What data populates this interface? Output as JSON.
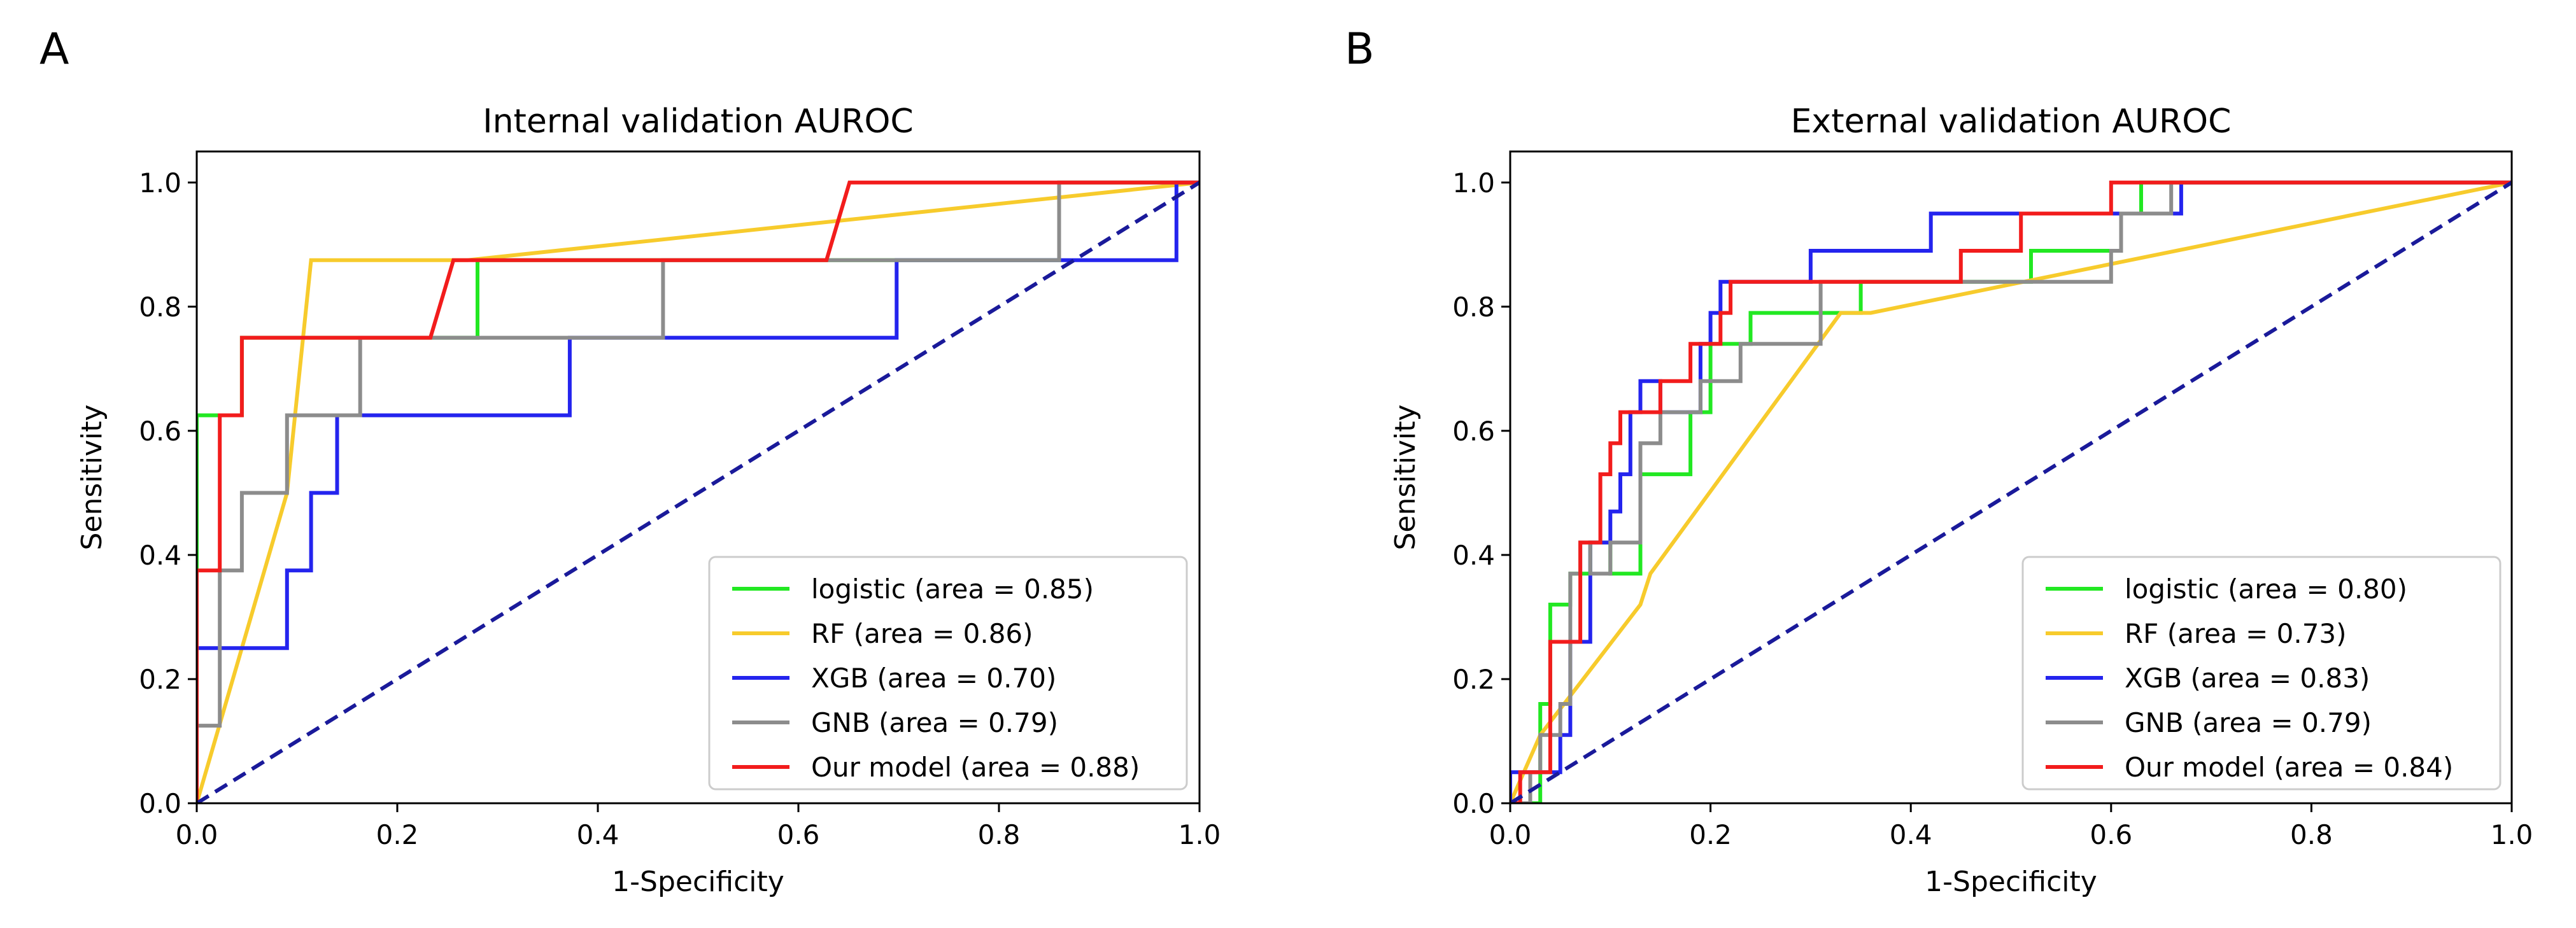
{
  "figure": {
    "panels": [
      "A",
      "B"
    ]
  },
  "colors": {
    "logistic": "#22e822",
    "RF": "#f7cb2c",
    "XGB": "#2424ee",
    "GNB": "#8c8c8c",
    "Our model": "#f21c1c",
    "chance": "#1a1a9a",
    "axes": "#000000"
  },
  "chart_data": [
    {
      "panel": "A",
      "type": "line",
      "title": "Internal validation AUROC",
      "xlabel": "1-Specificity",
      "ylabel": "Sensitivity",
      "xlim": [
        0,
        1
      ],
      "ylim": [
        0,
        1.05
      ],
      "xticks": [
        0.0,
        0.2,
        0.4,
        0.6,
        0.8,
        1.0
      ],
      "yticks": [
        0.0,
        0.2,
        0.4,
        0.6,
        0.8,
        1.0
      ],
      "tick_labels": [
        "0.0",
        "0.2",
        "0.4",
        "0.6",
        "0.8",
        "1.0"
      ],
      "legend_position": "lower right",
      "chance_line": {
        "x": [
          0,
          1
        ],
        "y": [
          0,
          1
        ]
      },
      "series": [
        {
          "name": "logistic",
          "legend": "logistic (area = 0.85)",
          "x": [
            0,
            0,
            0.045,
            0.045,
            0.28,
            0.28,
            0.86,
            0.86,
            1.0
          ],
          "y": [
            0,
            0.625,
            0.625,
            0.75,
            0.75,
            0.875,
            0.875,
            1.0,
            1.0
          ]
        },
        {
          "name": "RF",
          "legend": "RF (area = 0.86)",
          "x": [
            0,
            0.09,
            0.114,
            0.27,
            1.0
          ],
          "y": [
            0,
            0.5,
            0.875,
            0.875,
            1.0
          ]
        },
        {
          "name": "XGB",
          "legend": "XGB (area = 0.70)",
          "x": [
            0,
            0,
            0.09,
            0.09,
            0.114,
            0.114,
            0.14,
            0.14,
            0.372,
            0.372,
            0.698,
            0.698,
            0.977,
            0.977,
            1.0
          ],
          "y": [
            0,
            0.25,
            0.25,
            0.375,
            0.375,
            0.5,
            0.5,
            0.625,
            0.625,
            0.75,
            0.75,
            0.875,
            0.875,
            1.0,
            1.0
          ]
        },
        {
          "name": "GNB",
          "legend": "GNB (area = 0.79)",
          "x": [
            0,
            0,
            0.023,
            0.023,
            0.045,
            0.045,
            0.09,
            0.09,
            0.163,
            0.163,
            0.465,
            0.465,
            0.86,
            0.86,
            1.0
          ],
          "y": [
            0,
            0.125,
            0.125,
            0.375,
            0.375,
            0.5,
            0.5,
            0.625,
            0.625,
            0.75,
            0.75,
            0.875,
            0.875,
            1.0,
            1.0
          ]
        },
        {
          "name": "Our model",
          "legend": "Our model (area = 0.88)",
          "x": [
            0,
            0,
            0.023,
            0.023,
            0.045,
            0.045,
            0.233,
            0.256,
            0.628,
            0.651,
            1.0
          ],
          "y": [
            0,
            0.375,
            0.375,
            0.625,
            0.625,
            0.75,
            0.75,
            0.875,
            0.875,
            1.0,
            1.0
          ]
        }
      ]
    },
    {
      "panel": "B",
      "type": "line",
      "title": "External validation AUROC",
      "xlabel": "1-Specificity",
      "ylabel": "Sensitivity",
      "xlim": [
        0,
        1
      ],
      "ylim": [
        0,
        1.05
      ],
      "xticks": [
        0.0,
        0.2,
        0.4,
        0.6,
        0.8,
        1.0
      ],
      "yticks": [
        0.0,
        0.2,
        0.4,
        0.6,
        0.8,
        1.0
      ],
      "tick_labels": [
        "0.0",
        "0.2",
        "0.4",
        "0.6",
        "0.8",
        "1.0"
      ],
      "legend_position": "lower right",
      "chance_line": {
        "x": [
          0,
          1
        ],
        "y": [
          0,
          1
        ]
      },
      "series": [
        {
          "name": "logistic",
          "legend": "logistic (area = 0.80)",
          "x": [
            0,
            0.03,
            0.03,
            0.04,
            0.04,
            0.06,
            0.06,
            0.08,
            0.08,
            0.1,
            0.1,
            0.13,
            0.13,
            0.18,
            0.18,
            0.2,
            0.2,
            0.24,
            0.24,
            0.35,
            0.35,
            0.52,
            0.52,
            0.61,
            0.61,
            0.63,
            0.63,
            1.0
          ],
          "y": [
            0,
            0,
            0.16,
            0.16,
            0.32,
            0.32,
            0.37,
            0.37,
            0.42,
            0.42,
            0.37,
            0.37,
            0.53,
            0.53,
            0.63,
            0.63,
            0.74,
            0.74,
            0.79,
            0.79,
            0.84,
            0.84,
            0.89,
            0.89,
            0.95,
            0.95,
            1.0,
            1.0
          ]
        },
        {
          "name": "RF",
          "legend": "RF (area = 0.73)",
          "x": [
            0,
            0.03,
            0.13,
            0.14,
            0.33,
            0.36,
            1.0
          ],
          "y": [
            0,
            0.11,
            0.32,
            0.37,
            0.79,
            0.79,
            1.0
          ]
        },
        {
          "name": "XGB",
          "legend": "XGB (area = 0.83)",
          "x": [
            0,
            0,
            0.05,
            0.05,
            0.06,
            0.06,
            0.08,
            0.08,
            0.1,
            0.1,
            0.11,
            0.11,
            0.12,
            0.12,
            0.13,
            0.13,
            0.15,
            0.15,
            0.19,
            0.19,
            0.2,
            0.2,
            0.21,
            0.21,
            0.3,
            0.3,
            0.42,
            0.42,
            0.6,
            0.6,
            0.67,
            0.67,
            1.0
          ],
          "y": [
            0,
            0.05,
            0.05,
            0.11,
            0.11,
            0.26,
            0.26,
            0.42,
            0.42,
            0.47,
            0.47,
            0.53,
            0.53,
            0.63,
            0.63,
            0.68,
            0.68,
            0.63,
            0.63,
            0.74,
            0.74,
            0.79,
            0.79,
            0.84,
            0.84,
            0.89,
            0.89,
            0.95,
            0.95,
            0.95,
            0.95,
            1.0,
            1.0
          ]
        },
        {
          "name": "GNB",
          "legend": "GNB (area = 0.79)",
          "x": [
            0,
            0.02,
            0.02,
            0.03,
            0.03,
            0.05,
            0.05,
            0.06,
            0.06,
            0.07,
            0.07,
            0.08,
            0.08,
            0.1,
            0.1,
            0.13,
            0.13,
            0.15,
            0.15,
            0.19,
            0.19,
            0.23,
            0.23,
            0.27,
            0.27,
            0.31,
            0.31,
            0.6,
            0.6,
            0.61,
            0.61,
            0.65,
            0.65,
            0.66,
            0.66,
            1.0
          ],
          "y": [
            0,
            0,
            0.05,
            0.05,
            0.11,
            0.11,
            0.16,
            0.16,
            0.37,
            0.37,
            0.42,
            0.42,
            0.37,
            0.37,
            0.42,
            0.42,
            0.58,
            0.58,
            0.63,
            0.63,
            0.68,
            0.68,
            0.74,
            0.74,
            0.74,
            0.74,
            0.84,
            0.84,
            0.89,
            0.89,
            0.95,
            0.95,
            0.95,
            0.95,
            1.0,
            1.0
          ]
        },
        {
          "name": "Our model",
          "legend": "Our model (area = 0.84)",
          "x": [
            0,
            0.01,
            0.01,
            0.04,
            0.04,
            0.05,
            0.05,
            0.07,
            0.07,
            0.09,
            0.09,
            0.1,
            0.1,
            0.11,
            0.11,
            0.15,
            0.15,
            0.18,
            0.18,
            0.21,
            0.21,
            0.22,
            0.22,
            0.45,
            0.45,
            0.48,
            0.48,
            0.51,
            0.51,
            0.53,
            0.53,
            0.6,
            0.6,
            1.0
          ],
          "y": [
            0,
            0,
            0.05,
            0.05,
            0.26,
            0.26,
            0.26,
            0.26,
            0.42,
            0.42,
            0.53,
            0.53,
            0.58,
            0.58,
            0.63,
            0.63,
            0.68,
            0.68,
            0.74,
            0.74,
            0.79,
            0.79,
            0.84,
            0.84,
            0.89,
            0.89,
            0.89,
            0.89,
            0.95,
            0.95,
            0.95,
            0.95,
            1.0,
            1.0
          ]
        }
      ]
    }
  ]
}
